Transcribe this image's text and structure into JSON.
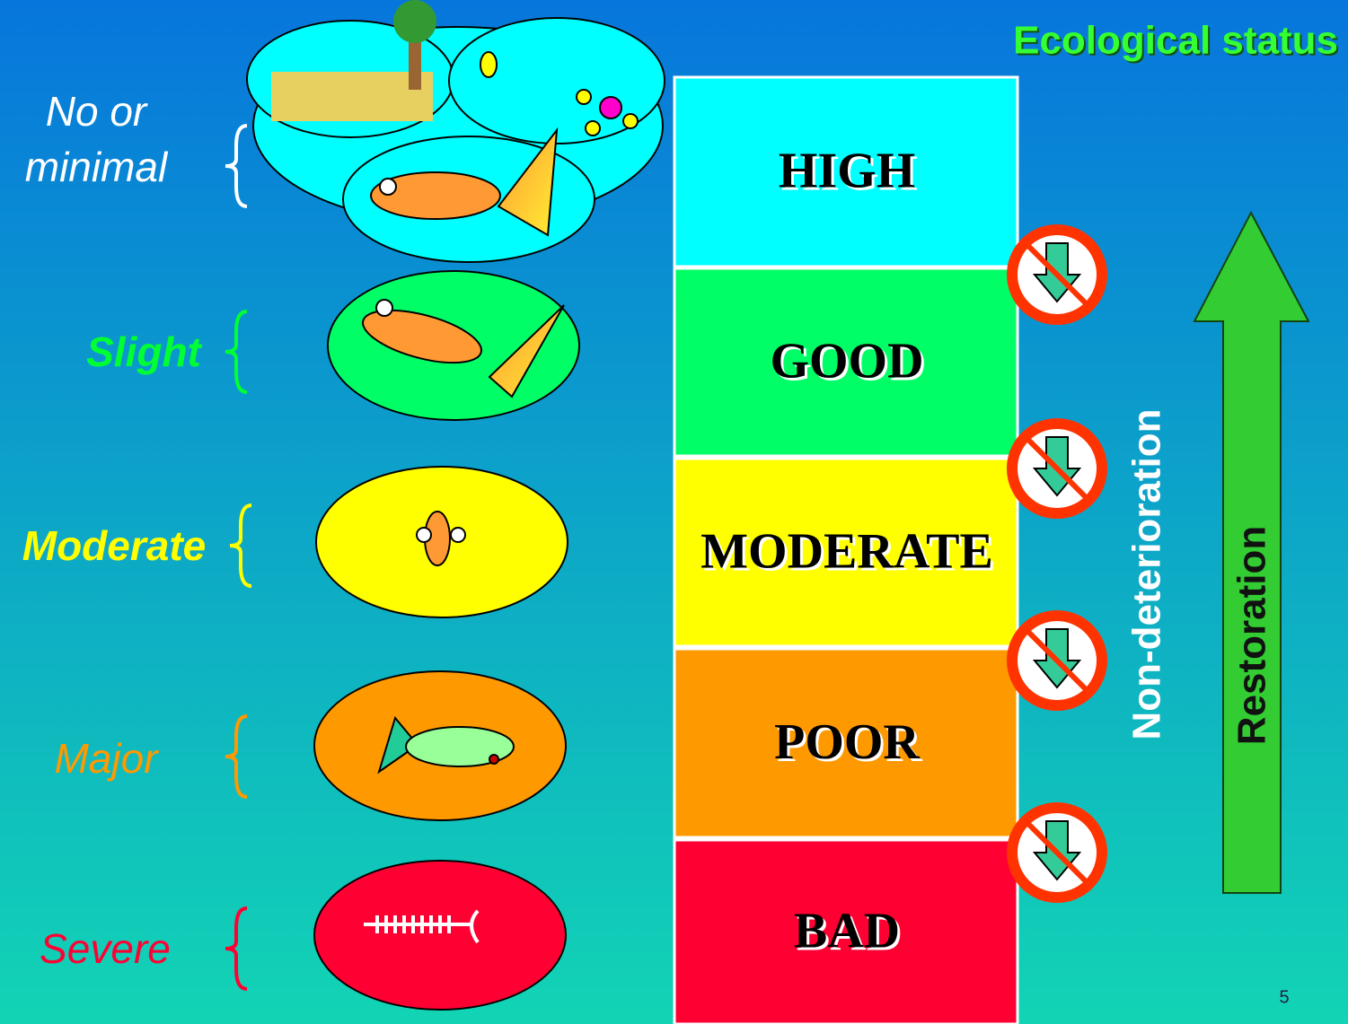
{
  "title": "Ecological status",
  "impacts": [
    {
      "label": "No or minimal",
      "color": "#ffffff"
    },
    {
      "label": "Slight",
      "color": "#00ff33"
    },
    {
      "label": "Moderate",
      "color": "#ffff00"
    },
    {
      "label": "Major",
      "color": "#ff9900"
    },
    {
      "label": "Severe",
      "color": "#ff0033"
    }
  ],
  "statuses": [
    {
      "label": "HIGH",
      "color": "#00ffff"
    },
    {
      "label": "GOOD",
      "color": "#00ff66"
    },
    {
      "label": "MODERATE",
      "color": "#ffff00"
    },
    {
      "label": "POOR",
      "color": "#ff9900"
    },
    {
      "label": "BAD",
      "color": "#ff0033"
    }
  ],
  "side_labels": {
    "non_deterioration": "Non-deterioration",
    "restoration": "Restoration"
  },
  "page_number": "5"
}
